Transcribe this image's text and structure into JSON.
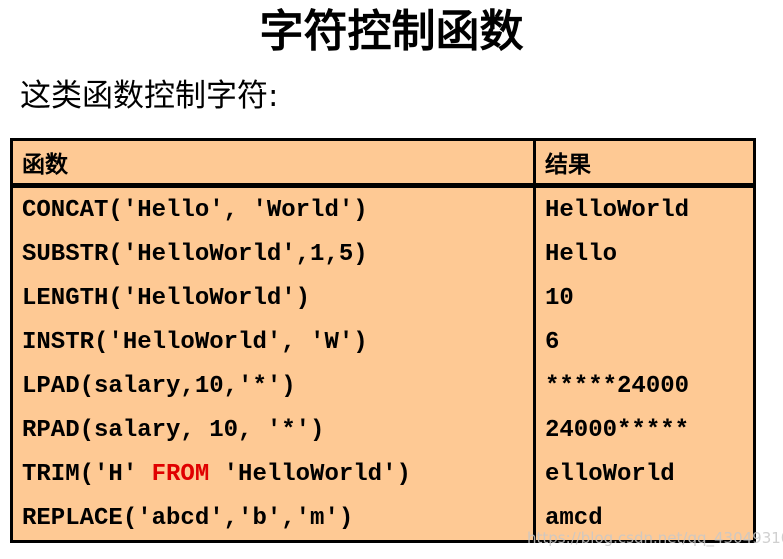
{
  "title": "字符控制函数",
  "subtitle": "这类函数控制字符:",
  "table": {
    "headers": [
      "函数",
      "结果"
    ],
    "rows": [
      {
        "func": "CONCAT('Hello', 'World')",
        "result": "HelloWorld"
      },
      {
        "func": "SUBSTR('HelloWorld',1,5)",
        "result": "Hello"
      },
      {
        "func": "LENGTH('HelloWorld')",
        "result": "10"
      },
      {
        "func": "INSTR('HelloWorld', 'W')",
        "result": "6"
      },
      {
        "func": "LPAD(salary,10,'*')",
        "result": "*****24000"
      },
      {
        "func": "RPAD(salary, 10, '*')",
        "result": "24000*****"
      },
      {
        "func_pre": "TRIM('H' ",
        "func_kw": "FROM",
        "func_post": " 'HelloWorld')",
        "result": "elloWorld"
      },
      {
        "func": "REPLACE('abcd','b','m')",
        "result": "amcd"
      }
    ],
    "colors": {
      "background": "#fec994",
      "keyword": "#e00000"
    }
  },
  "watermark": "https://blog.csdn.net/qq_43049310"
}
